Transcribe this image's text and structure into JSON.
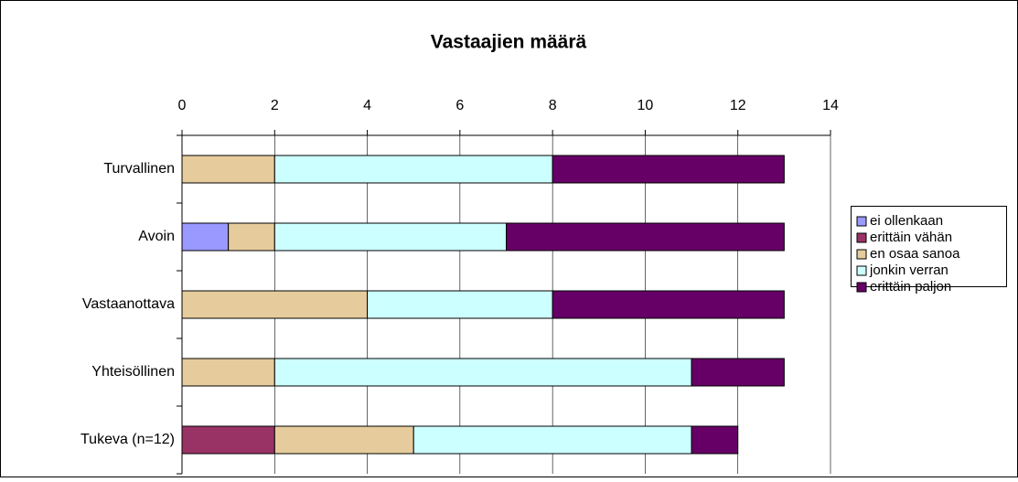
{
  "chart_data": {
    "type": "stacked-bar-horizontal",
    "title": "Vastaajien määrä",
    "categories": [
      "Turvallinen",
      "Avoin",
      "Vastaanottava",
      "Yhteisöllinen",
      "Tukeva (n=12)"
    ],
    "series": [
      {
        "name": "ei ollenkaan",
        "color": "#9999ff",
        "values": [
          0,
          1,
          0,
          0,
          0
        ]
      },
      {
        "name": "erittäin vähän",
        "color": "#993366",
        "values": [
          0,
          0,
          0,
          0,
          2
        ]
      },
      {
        "name": "en osaa sanoa",
        "color": "#e6cc9c",
        "values": [
          2,
          1,
          4,
          2,
          3
        ]
      },
      {
        "name": "jonkin verran",
        "color": "#ccffff",
        "values": [
          6,
          5,
          4,
          9,
          6
        ]
      },
      {
        "name": "erittäin paljon",
        "color": "#660066",
        "values": [
          5,
          6,
          5,
          2,
          1
        ]
      }
    ],
    "xlim": [
      0,
      14
    ],
    "xticks": [
      0,
      2,
      4,
      6,
      8,
      10,
      12,
      14
    ],
    "grid": true,
    "legend": "right"
  }
}
